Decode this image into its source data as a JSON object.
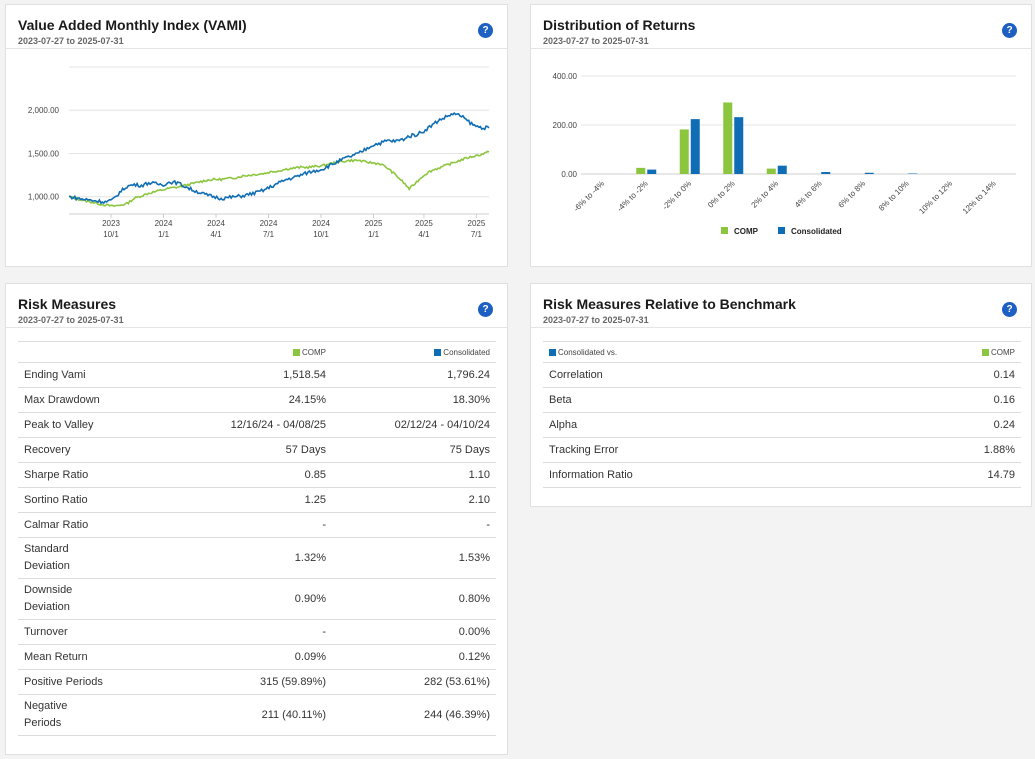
{
  "vami": {
    "title": "Value Added Monthly Index (VAMI)",
    "subtitle": "2023-07-27 to 2025-07-31",
    "help": "?",
    "chart_data": {
      "type": "line",
      "y_ticks": [
        "1,000.00",
        "1,500.00",
        "2,000.00"
      ],
      "ylim": [
        800,
        2500
      ],
      "x_ticks": [
        {
          "year": "2023",
          "month": "10/1",
          "t": 0.1
        },
        {
          "year": "2024",
          "month": "1/1",
          "t": 0.225
        },
        {
          "year": "2024",
          "month": "4/1",
          "t": 0.35
        },
        {
          "year": "2024",
          "month": "7/1",
          "t": 0.475
        },
        {
          "year": "2024",
          "month": "10/1",
          "t": 0.6
        },
        {
          "year": "2025",
          "month": "1/1",
          "t": 0.725
        },
        {
          "year": "2025",
          "month": "4/1",
          "t": 0.845
        },
        {
          "year": "2025",
          "month": "7/1",
          "t": 0.97
        }
      ],
      "series": [
        {
          "name": "COMP",
          "color": "#8cc63f",
          "values": [
            1000,
            980,
            955,
            940,
            920,
            905,
            890,
            900,
            920,
            980,
            1010,
            1040,
            1060,
            1080,
            1100,
            1110,
            1130,
            1150,
            1170,
            1190,
            1200,
            1200,
            1210,
            1220,
            1240,
            1250,
            1260,
            1270,
            1290,
            1300,
            1320,
            1330,
            1340,
            1340,
            1350,
            1360,
            1380,
            1400,
            1410,
            1420,
            1420,
            1400,
            1390,
            1380,
            1330,
            1260,
            1180,
            1090,
            1170,
            1250,
            1300,
            1330,
            1360,
            1390,
            1420,
            1450,
            1470,
            1490,
            1518.54
          ]
        },
        {
          "name": "Consolidated",
          "color": "#0e6db5",
          "values": [
            1000,
            985,
            970,
            960,
            950,
            940,
            960,
            1050,
            1120,
            1140,
            1130,
            1160,
            1150,
            1140,
            1170,
            1160,
            1120,
            1080,
            1050,
            1020,
            1000,
            980,
            990,
            1000,
            1010,
            1030,
            1050,
            1080,
            1120,
            1160,
            1200,
            1220,
            1250,
            1280,
            1300,
            1320,
            1360,
            1400,
            1440,
            1470,
            1500,
            1550,
            1600,
            1620,
            1650,
            1640,
            1660,
            1700,
            1720,
            1760,
            1820,
            1880,
            1920,
            1960,
            1940,
            1880,
            1820,
            1800,
            1796.24
          ]
        }
      ]
    }
  },
  "dist": {
    "title": "Distribution of Returns",
    "subtitle": "2023-07-27 to 2025-07-31",
    "help": "?",
    "chart_data": {
      "type": "bar",
      "categories": [
        "-6% to -4%",
        "-4% to -2%",
        "-2% to 0%",
        "0% to 2%",
        "2% to 4%",
        "4% to 6%",
        "6% to 8%",
        "8% to 10%",
        "10% to 12%",
        "12% to 14%"
      ],
      "y_ticks": [
        "0.00",
        "200.00",
        "400.00"
      ],
      "ylim": [
        0,
        400
      ],
      "series": [
        {
          "name": "COMP",
          "color": "#8cc63f",
          "values": [
            0,
            25,
            182,
            292,
            22,
            0,
            0,
            0,
            0,
            0
          ]
        },
        {
          "name": "Consolidated",
          "color": "#0e6db5",
          "values": [
            0,
            18,
            224,
            232,
            34,
            8,
            5,
            2,
            0,
            0
          ]
        }
      ],
      "legend": [
        "COMP",
        "Consolidated"
      ]
    }
  },
  "risk": {
    "title": "Risk Measures",
    "subtitle": "2023-07-27 to 2025-07-31",
    "help": "?",
    "col1": "COMP",
    "col2": "Consolidated",
    "rows": [
      {
        "label": "Ending Vami",
        "a": "1,518.54",
        "b": "1,796.24"
      },
      {
        "label": "Max Drawdown",
        "a": "24.15%",
        "b": "18.30%"
      },
      {
        "label": "Peak to Valley",
        "a": "12/16/24 - 04/08/25",
        "b": "02/12/24 - 04/10/24"
      },
      {
        "label": "Recovery",
        "a": "57 Days",
        "b": "75 Days"
      },
      {
        "label": "Sharpe Ratio",
        "a": "0.85",
        "b": "1.10"
      },
      {
        "label": "Sortino Ratio",
        "a": "1.25",
        "b": "2.10"
      },
      {
        "label": "Calmar Ratio",
        "a": "-",
        "b": "-"
      },
      {
        "label": "Standard Deviation",
        "a": "1.32%",
        "b": "1.53%"
      },
      {
        "label": "Downside Deviation",
        "a": "0.90%",
        "b": "0.80%"
      },
      {
        "label": "Turnover",
        "a": "-",
        "b": "0.00%"
      },
      {
        "label": "Mean Return",
        "a": "0.09%",
        "b": "0.12%"
      },
      {
        "label": "Positive Periods",
        "a": "315 (59.89%)",
        "b": "282 (53.61%)"
      },
      {
        "label": "Negative Periods",
        "a": "211 (40.11%)",
        "b": "244 (46.39%)"
      }
    ]
  },
  "rel": {
    "title": "Risk Measures Relative to Benchmark",
    "subtitle": "2023-07-27 to 2025-07-31",
    "help": "?",
    "col1": "Consolidated vs.",
    "col2": "COMP",
    "rows": [
      {
        "label": "Correlation",
        "v": "0.14"
      },
      {
        "label": "Beta",
        "v": "0.16"
      },
      {
        "label": "Alpha",
        "v": "0.24"
      },
      {
        "label": "Tracking Error",
        "v": "1.88%"
      },
      {
        "label": "Information Ratio",
        "v": "14.79"
      }
    ]
  }
}
